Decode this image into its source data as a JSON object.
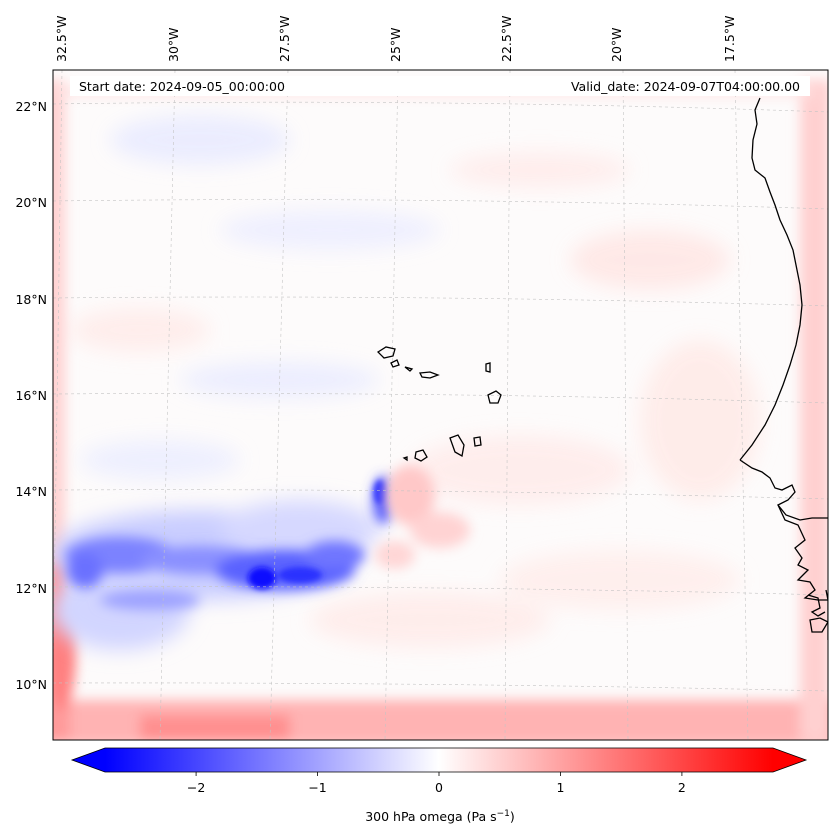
{
  "header": {
    "start_date": "Start date: 2024-09-05_00:00:00",
    "valid_date": "Valid_date: 2024-09-07T04:00:00.00"
  },
  "longitude_labels": [
    "32.5°W",
    "30°W",
    "27.5°W",
    "25°W",
    "22.5°W",
    "20°W",
    "17.5°W"
  ],
  "latitude_labels": [
    "22°N",
    "20°N",
    "18°N",
    "16°N",
    "14°N",
    "12°N",
    "10°N"
  ],
  "colorbar": {
    "ticks": [
      "−2",
      "−1",
      "0",
      "1",
      "2"
    ],
    "range": [
      -2.75,
      2.75
    ],
    "extend": "both",
    "label_main": "300 hPa omega (Pa s",
    "label_sup": "−1",
    "label_end": ")",
    "colormap": "bwr",
    "color_min": "#0000ff",
    "color_mid": "#ffffff",
    "color_max": "#ff0000"
  },
  "map": {
    "field": "300 hPa omega",
    "units": "Pa s-1",
    "gridlines": true,
    "coastline_color": "#000000",
    "ascent_region": "strong negative omega (blue) near 12°N, 26°W–31°W and 13.5°N, 24°W",
    "boundary_feature": "positive omega (red) relaxation zone along domain edges"
  }
}
